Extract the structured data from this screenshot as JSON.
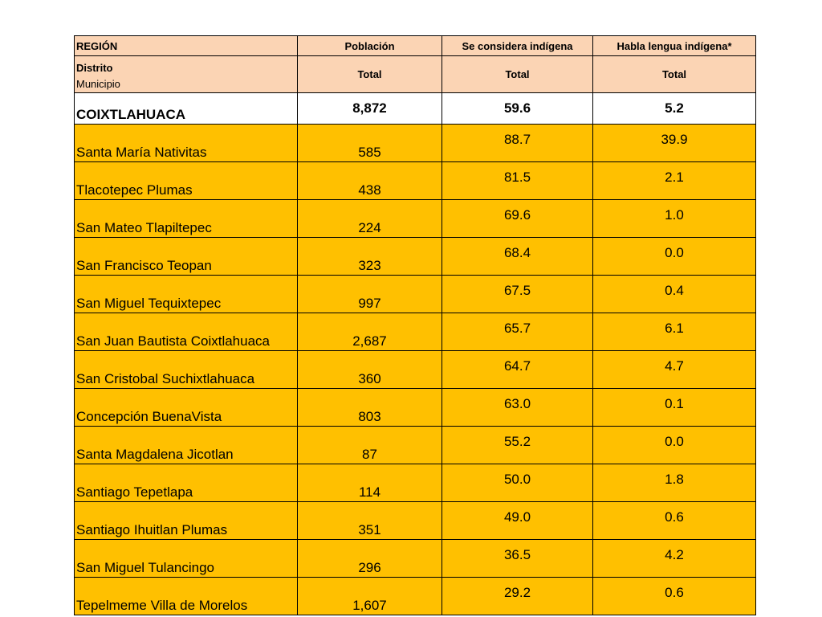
{
  "header": {
    "region_label": "REGIÓN",
    "distrito_label": "Distrito",
    "municipio_label": "Municipio",
    "col_poblacion": "Población",
    "col_indigena": "Se considera indígena",
    "col_lengua": "Habla lengua indígena*",
    "total_label_1": "Total",
    "total_label_2": "Total",
    "total_label_3": "Total"
  },
  "district": {
    "name": "COIXTLAHUACA",
    "poblacion": "8,872",
    "indigena": "59.6",
    "lengua": "5.2"
  },
  "rows": [
    {
      "name": "Santa María Nativitas",
      "poblacion": "585",
      "indigena": "88.7",
      "lengua": "39.9"
    },
    {
      "name": "Tlacotepec Plumas",
      "poblacion": "438",
      "indigena": "81.5",
      "lengua": "2.1"
    },
    {
      "name": "San Mateo Tlapiltepec",
      "poblacion": "224",
      "indigena": "69.6",
      "lengua": "1.0"
    },
    {
      "name": "San Francisco Teopan",
      "poblacion": "323",
      "indigena": "68.4",
      "lengua": "0.0"
    },
    {
      "name": "San Miguel Tequixtepec",
      "poblacion": "997",
      "indigena": "67.5",
      "lengua": "0.4"
    },
    {
      "name": "San Juan Bautista Coixtlahuaca",
      "poblacion": "2,687",
      "indigena": "65.7",
      "lengua": "6.1"
    },
    {
      "name": "San Cristobal Suchixtlahuaca",
      "poblacion": "360",
      "indigena": "64.7",
      "lengua": "4.7"
    },
    {
      "name": "Concepción BuenaVista",
      "poblacion": "803",
      "indigena": "63.0",
      "lengua": "0.1"
    },
    {
      "name": "Santa Magdalena Jicotlan",
      "poblacion": "87",
      "indigena": "55.2",
      "lengua": "0.0"
    },
    {
      "name": "Santiago Tepetlapa",
      "poblacion": "114",
      "indigena": "50.0",
      "lengua": "1.8"
    },
    {
      "name": "Santiago Ihuitlan Plumas",
      "poblacion": "351",
      "indigena": "49.0",
      "lengua": "0.6"
    },
    {
      "name": "San Miguel Tulancingo",
      "poblacion": "296",
      "indigena": "36.5",
      "lengua": "4.2"
    },
    {
      "name": "Tepelmeme Villa  de Morelos",
      "poblacion": "1,607",
      "indigena": "29.2",
      "lengua": "0.6"
    }
  ],
  "colors": {
    "header_bg": "#fbd4b4",
    "row_bg": "#ffc000",
    "district_bg": "#ffffff",
    "border": "#000000"
  }
}
